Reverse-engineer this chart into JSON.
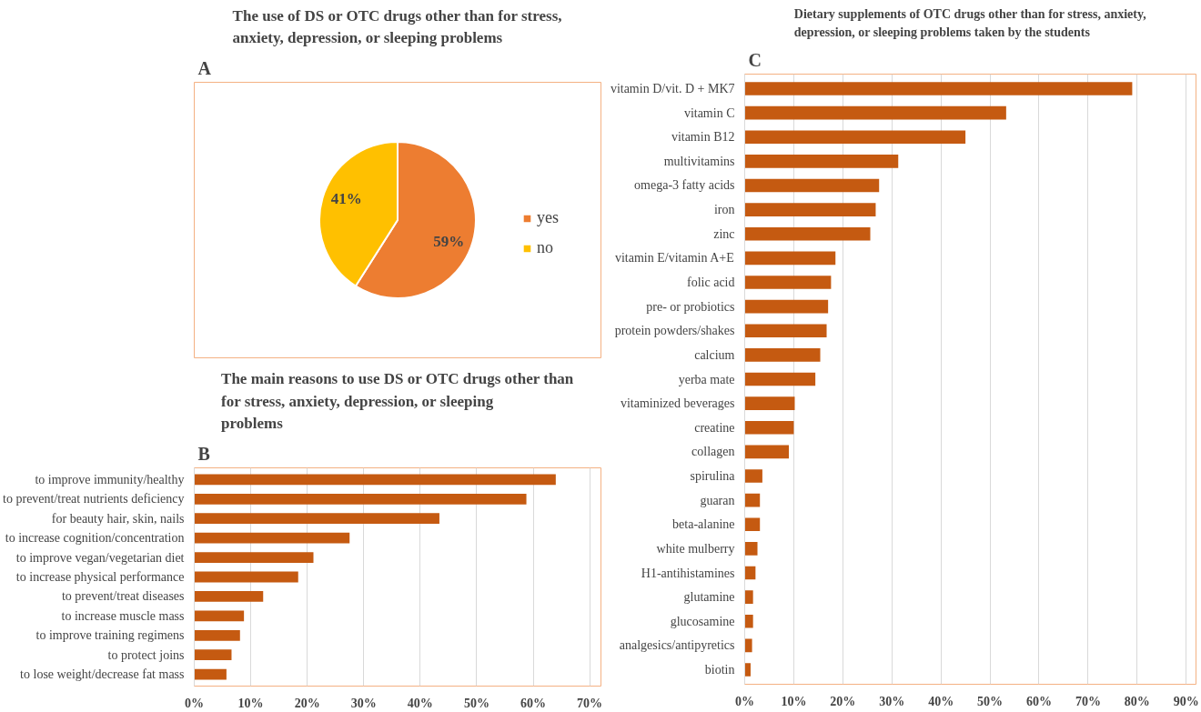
{
  "chart_data": [
    {
      "type": "pie",
      "title": "The use of DS or OTC drugs other than for stress, anxiety, depression, or sleeping problems",
      "annotations": [
        "A"
      ],
      "categories": [
        "yes",
        "no"
      ],
      "values": [
        59,
        41
      ],
      "colors": [
        "#ed7d31",
        "#ffc000"
      ],
      "value_labels": [
        "59%",
        "41%"
      ],
      "legend": "right"
    },
    {
      "type": "bar",
      "orientation": "horizontal",
      "title": "The main reasons to use DS or OTC drugs other than for stress, anxiety, depression, or sleeping problems",
      "annotations": [
        "B"
      ],
      "categories": [
        "to improve immunity/healthy",
        "to prevent/treat nutrients deficiency",
        "for beauty hair, skin, nails",
        "to increase cognition/concentration",
        "to improve vegan/vegetarian diet",
        "to increase physical performance",
        "to prevent/treat diseases",
        "to increase muscle mass",
        "to improve training regimens",
        "to protect joins",
        "to lose weight/decrease fat mass"
      ],
      "values": [
        64.0,
        58.8,
        43.4,
        27.5,
        21.1,
        18.4,
        12.2,
        8.8,
        8.1,
        6.6,
        5.7
      ],
      "color": "#c55a11",
      "xlim": [
        0,
        72
      ],
      "xticks": [
        {
          "value": 0,
          "label": "0%"
        },
        {
          "value": 10,
          "label": "10%"
        },
        {
          "value": 20,
          "label": "20%"
        },
        {
          "value": 30,
          "label": "30%"
        },
        {
          "value": 40,
          "label": "40%"
        },
        {
          "value": 50,
          "label": "50%"
        },
        {
          "value": 60,
          "label": "60%"
        },
        {
          "value": 70,
          "label": "70%"
        }
      ],
      "grid": "x",
      "legend": false
    },
    {
      "type": "bar",
      "orientation": "horizontal",
      "title": "Dietary supplements of OTC drugs other than for stress, anxiety, depression, or sleeping problems taken by the students",
      "annotations": [
        "C"
      ],
      "categories": [
        "vitamin D/vit. D + MK7",
        "vitamin C",
        "vitamin B12",
        "multivitamins",
        "omega-3 fatty acids",
        "iron",
        "zinc",
        "vitamin E/vitamin A+E",
        "folic acid",
        "pre- or probiotics",
        "protein powders/shakes",
        "calcium",
        "yerba mate",
        "vitaminized beverages",
        "creatine",
        "collagen",
        "spirulina",
        "guaran",
        "beta-alanine",
        "white mulberry",
        "H1-antihistamines",
        "glutamine",
        "glucosamine",
        "analgesics/antipyretics",
        "biotin"
      ],
      "values": [
        79.0,
        53.3,
        45.0,
        31.3,
        27.4,
        26.7,
        25.6,
        18.5,
        17.6,
        17.0,
        16.7,
        15.4,
        14.4,
        10.2,
        10.0,
        9.0,
        3.6,
        3.1,
        3.1,
        2.6,
        2.2,
        1.7,
        1.7,
        1.5,
        1.2
      ],
      "color": "#c55a11",
      "xlim": [
        0,
        92
      ],
      "xticks": [
        {
          "value": 0,
          "label": "0%"
        },
        {
          "value": 10,
          "label": "10%"
        },
        {
          "value": 20,
          "label": "20%"
        },
        {
          "value": 30,
          "label": "30%"
        },
        {
          "value": 40,
          "label": "40%"
        },
        {
          "value": 50,
          "label": "50%"
        },
        {
          "value": 60,
          "label": "60%"
        },
        {
          "value": 70,
          "label": "70%"
        },
        {
          "value": 80,
          "label": "80%"
        },
        {
          "value": 90,
          "label": "90%"
        }
      ],
      "grid": "x",
      "legend": false
    }
  ]
}
